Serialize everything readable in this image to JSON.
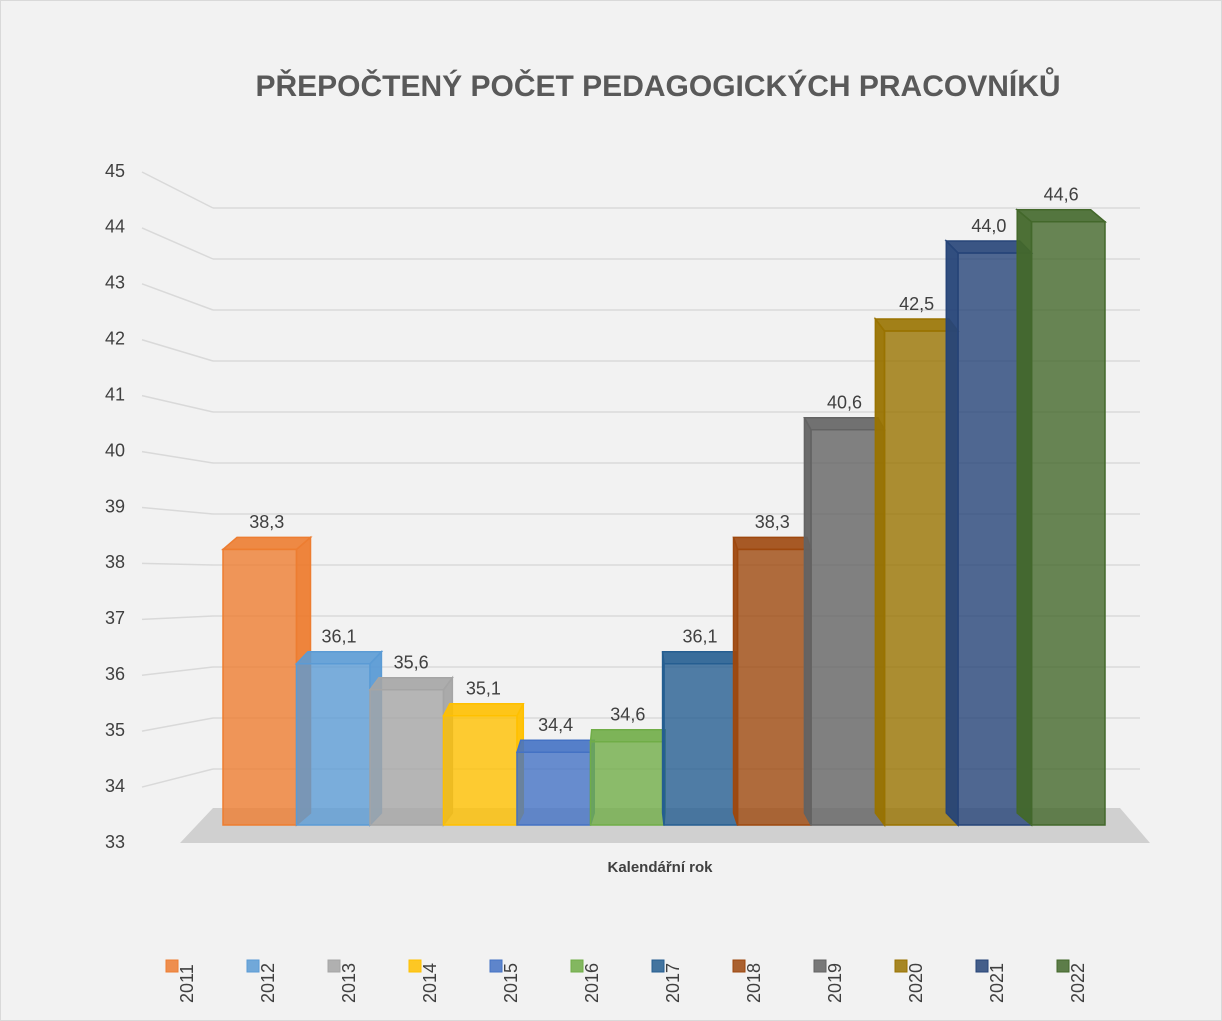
{
  "chart_data": {
    "type": "bar",
    "title": "PŘEPOČTENÝ POČET PEDAGOGICKÝCH PRACOVNÍKŮ",
    "x_label": "Kalendářní rok",
    "ylim": [
      33,
      45
    ],
    "yticks": [
      33,
      34,
      35,
      36,
      37,
      38,
      39,
      40,
      41,
      42,
      43,
      44,
      45
    ],
    "grid": true,
    "legend": "bottom",
    "series": [
      {
        "name": "2011",
        "color": "#ed7d31",
        "values": [
          38.3
        ],
        "value_labels": [
          "38,3"
        ]
      },
      {
        "name": "2012",
        "color": "#5b9bd5",
        "values": [
          36.1
        ],
        "value_labels": [
          "36,1"
        ]
      },
      {
        "name": "2013",
        "color": "#a5a5a5",
        "values": [
          35.6
        ],
        "value_labels": [
          "35,6"
        ]
      },
      {
        "name": "2014",
        "color": "#ffc000",
        "values": [
          35.1
        ],
        "value_labels": [
          "35,1"
        ]
      },
      {
        "name": "2015",
        "color": "#4472c4",
        "values": [
          34.4
        ],
        "value_labels": [
          "34,4"
        ]
      },
      {
        "name": "2016",
        "color": "#70ad47",
        "values": [
          34.6
        ],
        "value_labels": [
          "34,6"
        ]
      },
      {
        "name": "2017",
        "color": "#255e91",
        "values": [
          36.1
        ],
        "value_labels": [
          "36,1"
        ]
      },
      {
        "name": "2018",
        "color": "#9e480e",
        "values": [
          38.3
        ],
        "value_labels": [
          "38,3"
        ]
      },
      {
        "name": "2019",
        "color": "#636363",
        "values": [
          40.6
        ],
        "value_labels": [
          "40,6"
        ]
      },
      {
        "name": "2020",
        "color": "#997300",
        "values": [
          42.5
        ],
        "value_labels": [
          "42,5"
        ]
      },
      {
        "name": "2021",
        "color": "#264478",
        "values": [
          44.0
        ],
        "value_labels": [
          "44,0"
        ]
      },
      {
        "name": "2022",
        "color": "#43682b",
        "values": [
          44.6
        ],
        "value_labels": [
          "44,6"
        ]
      }
    ]
  }
}
